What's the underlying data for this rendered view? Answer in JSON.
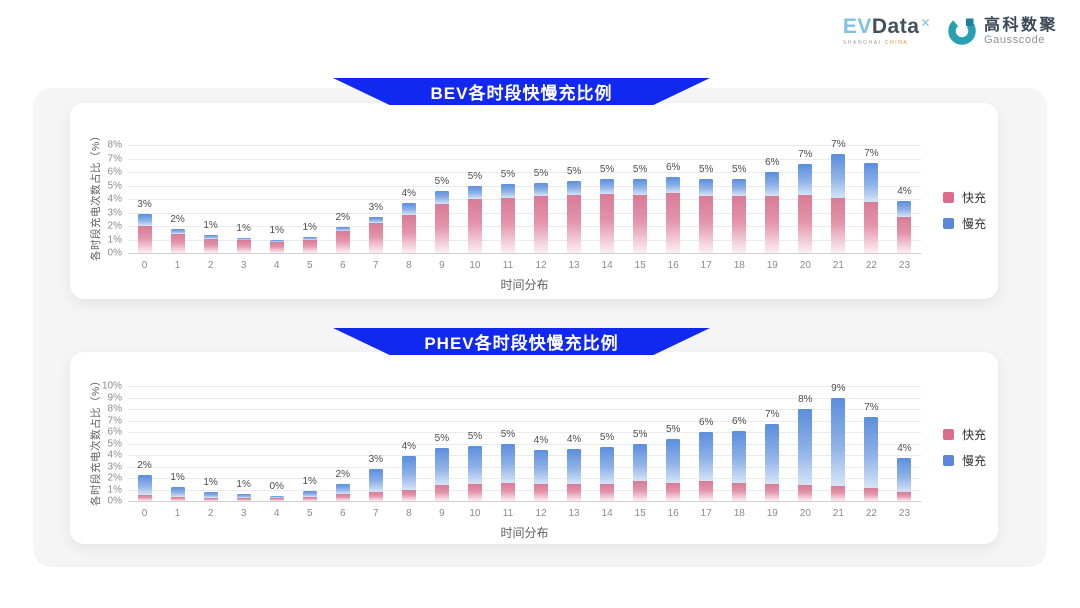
{
  "header": {
    "evdata": {
      "ev": "EV",
      "data": "Data",
      "sup": "✕",
      "sub_gray": "SHANGHAI ",
      "sub_orange": "CHINA"
    },
    "gausscode": {
      "name_cn": "高科数聚",
      "name_en": "Gausscode"
    }
  },
  "colors": {
    "banner_blue": "#1128f0",
    "fast_legend": "#dd6e8b",
    "slow_legend": "#5b87d8",
    "fast_gradient_top": "#d97b96",
    "slow_gradient_top": "#5a8ede"
  },
  "chart_data": [
    {
      "type": "bar",
      "stacked": true,
      "title": "BEV各时段快慢充比例",
      "xlabel": "时间分布",
      "ylabel": "各时段充电次数占比（%）",
      "ylim": [
        0,
        8
      ],
      "ytick_step": 1,
      "grid": true,
      "legend_position": "right",
      "categories": [
        "0",
        "1",
        "2",
        "3",
        "4",
        "5",
        "6",
        "7",
        "8",
        "9",
        "10",
        "11",
        "12",
        "13",
        "14",
        "15",
        "16",
        "17",
        "18",
        "19",
        "20",
        "21",
        "22",
        "23"
      ],
      "series": [
        {
          "name": "快充",
          "key": "fast",
          "values": [
            2.0,
            1.4,
            1.05,
            0.95,
            0.85,
            1.0,
            1.6,
            2.2,
            2.85,
            3.6,
            4.0,
            4.1,
            4.2,
            4.3,
            4.4,
            4.3,
            4.45,
            4.2,
            4.2,
            4.2,
            4.3,
            4.1,
            3.8,
            2.7
          ]
        },
        {
          "name": "慢充",
          "key": "slow",
          "values": [
            0.9,
            0.4,
            0.25,
            0.15,
            0.1,
            0.2,
            0.3,
            0.5,
            0.85,
            1.0,
            1.0,
            1.0,
            1.0,
            1.0,
            1.05,
            1.15,
            1.15,
            1.3,
            1.3,
            1.8,
            2.3,
            3.2,
            2.9,
            1.15
          ]
        }
      ],
      "bar_labels": [
        "3%",
        "2%",
        "1%",
        "1%",
        "1%",
        "1%",
        "2%",
        "3%",
        "4%",
        "5%",
        "5%",
        "5%",
        "5%",
        "5%",
        "5%",
        "5%",
        "6%",
        "5%",
        "5%",
        "6%",
        "7%",
        "7%",
        "7%",
        "4%"
      ]
    },
    {
      "type": "bar",
      "stacked": true,
      "title": "PHEV各时段快慢充比例",
      "xlabel": "时间分布",
      "ylabel": "各时段充电次数占比（%）",
      "ylim": [
        0,
        10
      ],
      "ytick_step": 1,
      "grid": true,
      "legend_position": "right",
      "categories": [
        "0",
        "1",
        "2",
        "3",
        "4",
        "5",
        "6",
        "7",
        "8",
        "9",
        "10",
        "11",
        "12",
        "13",
        "14",
        "15",
        "16",
        "17",
        "18",
        "19",
        "20",
        "21",
        "22",
        "23"
      ],
      "series": [
        {
          "name": "快充",
          "key": "fast",
          "values": [
            0.5,
            0.35,
            0.3,
            0.3,
            0.25,
            0.35,
            0.6,
            0.8,
            1.0,
            1.4,
            1.5,
            1.6,
            1.5,
            1.5,
            1.5,
            1.7,
            1.6,
            1.7,
            1.6,
            1.5,
            1.4,
            1.3,
            1.1,
            0.8
          ]
        },
        {
          "name": "慢充",
          "key": "slow",
          "values": [
            1.75,
            0.85,
            0.5,
            0.3,
            0.2,
            0.5,
            0.9,
            1.95,
            2.9,
            3.2,
            3.3,
            3.4,
            2.9,
            3.0,
            3.2,
            3.3,
            3.8,
            4.3,
            4.5,
            5.2,
            6.6,
            7.7,
            6.2,
            2.9
          ]
        }
      ],
      "bar_labels": [
        "2%",
        "1%",
        "1%",
        "1%",
        "0%",
        "1%",
        "2%",
        "3%",
        "4%",
        "5%",
        "5%",
        "5%",
        "4%",
        "4%",
        "5%",
        "5%",
        "5%",
        "6%",
        "6%",
        "7%",
        "8%",
        "9%",
        "7%",
        "4%"
      ]
    }
  ]
}
